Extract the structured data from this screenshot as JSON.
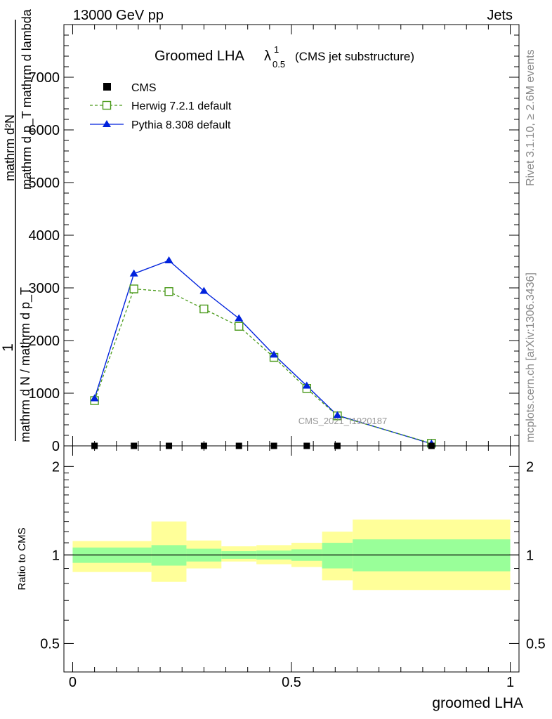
{
  "header": {
    "left": "13000 GeV pp",
    "right": "Jets"
  },
  "side_labels": {
    "rivet": "Rivet 3.1.10, ≥ 2.6M events",
    "mcplots": "mcplots.cern.ch [arXiv:1306.3436]"
  },
  "watermark": "CMS_2021_I1920187",
  "main_title": {
    "text": "Groomed LHA",
    "lambda": "λ",
    "sup": "1",
    "sub": "0.5",
    "suffix": "(CMS jet substructure)"
  },
  "ylabel_main": {
    "one": "1",
    "den": "mathrm d N / mathrm d p_T",
    "num": "mathrm d²N",
    "num_den": "mathrm d p_T mathrm d lambda"
  },
  "ylabel_ratio": "Ratio to CMS",
  "xlabel": "groomed LHA",
  "legend": {
    "cms": "CMS",
    "herwig": "Herwig 7.2.1 default",
    "pythia": "Pythia 8.308 default"
  },
  "colors": {
    "herwig": "#4a9a1a",
    "pythia": "#0022dd",
    "band_inner": "#99ff99",
    "band_outer": "#ffff99",
    "axis": "#000000",
    "side_text": "#888888"
  },
  "chart_data": [
    {
      "type": "line",
      "panel": "main",
      "xlim": [
        -0.02,
        1.02
      ],
      "ylim": [
        0,
        8000
      ],
      "yticks": [
        0,
        1000,
        2000,
        3000,
        4000,
        5000,
        6000,
        7000
      ],
      "ytick_labels": [
        "0",
        "1000",
        "2000",
        "3000",
        "4000",
        "5000",
        "6000",
        "7000"
      ],
      "series": [
        {
          "name": "CMS",
          "marker": "square",
          "x": [
            0.05,
            0.14,
            0.22,
            0.3,
            0.38,
            0.46,
            0.535,
            0.605,
            0.82
          ],
          "y": [
            0,
            0,
            0,
            0,
            0,
            0,
            0,
            0,
            0
          ]
        },
        {
          "name": "Herwig 7.2.1 default",
          "marker": "open-square",
          "dashed": true,
          "x": [
            0.05,
            0.14,
            0.22,
            0.3,
            0.38,
            0.46,
            0.535,
            0.605,
            0.82
          ],
          "y": [
            860,
            2980,
            2930,
            2600,
            2270,
            1680,
            1090,
            570,
            50
          ]
        },
        {
          "name": "Pythia 8.308 default",
          "marker": "triangle",
          "x": [
            0.05,
            0.14,
            0.22,
            0.3,
            0.38,
            0.46,
            0.535,
            0.605,
            0.82
          ],
          "y": [
            900,
            3270,
            3520,
            2940,
            2420,
            1730,
            1140,
            580,
            40
          ]
        }
      ]
    },
    {
      "type": "area",
      "panel": "ratio",
      "xlim": [
        -0.02,
        1.02
      ],
      "ylim": [
        0.4,
        2.35
      ],
      "log_y": true,
      "yticks": [
        0.5,
        1,
        2
      ],
      "ytick_labels": [
        "0.5",
        "1",
        "2"
      ],
      "xticks": [
        0,
        0.5,
        1
      ],
      "xtick_labels": [
        "0",
        "0.5",
        "1"
      ],
      "reference": 1,
      "bins": [
        {
          "lo": 0.0,
          "hi": 0.18,
          "inner": [
            0.94,
            1.06
          ],
          "outer": [
            0.875,
            1.115
          ]
        },
        {
          "lo": 0.18,
          "hi": 0.26,
          "inner": [
            0.92,
            1.08
          ],
          "outer": [
            0.81,
            1.3
          ]
        },
        {
          "lo": 0.26,
          "hi": 0.34,
          "inner": [
            0.95,
            1.05
          ],
          "outer": [
            0.9,
            1.12
          ]
        },
        {
          "lo": 0.34,
          "hi": 0.42,
          "inner": [
            0.97,
            1.03
          ],
          "outer": [
            0.95,
            1.07
          ]
        },
        {
          "lo": 0.42,
          "hi": 0.5,
          "inner": [
            0.965,
            1.035
          ],
          "outer": [
            0.93,
            1.08
          ]
        },
        {
          "lo": 0.5,
          "hi": 0.57,
          "inner": [
            0.955,
            1.045
          ],
          "outer": [
            0.91,
            1.1
          ]
        },
        {
          "lo": 0.57,
          "hi": 0.64,
          "inner": [
            0.9,
            1.1
          ],
          "outer": [
            0.82,
            1.2
          ]
        },
        {
          "lo": 0.64,
          "hi": 1.0,
          "inner": [
            0.88,
            1.13
          ],
          "outer": [
            0.76,
            1.32
          ]
        }
      ]
    }
  ]
}
